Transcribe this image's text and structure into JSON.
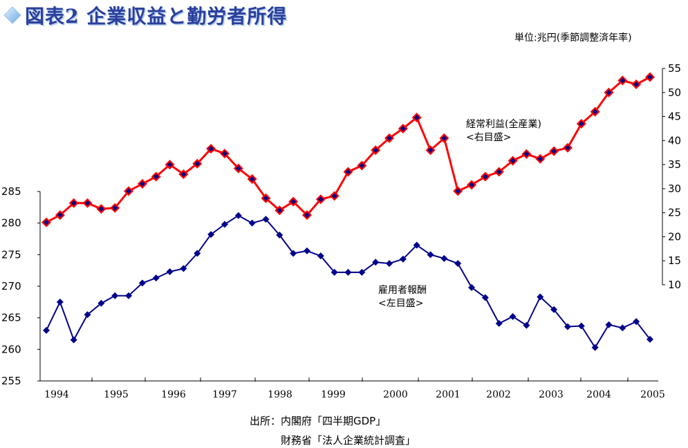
{
  "header": {
    "title": "図表2 企業収益と勤労者所得",
    "unit_note": "単位:兆円(季節調整済年率)"
  },
  "source": {
    "line1": "出所：内閣府「四半期GDP」",
    "line2": "財務省「法人企業統計調査」"
  },
  "colors": {
    "title": "#2c3f9c",
    "profit_line": "#ff0000",
    "profit_marker": "#00008b",
    "comp_line": "#00008b",
    "comp_marker": "#00008b"
  },
  "chart_data": {
    "type": "line",
    "x_tick_labels": [
      "1994",
      "1995",
      "1996",
      "1997",
      "1998",
      "1999",
      "2000",
      "2001",
      "2002",
      "2003",
      "2004",
      "2005"
    ],
    "left_axis": {
      "ylim": [
        255,
        285
      ],
      "ticks": [
        255,
        260,
        265,
        270,
        275,
        280,
        285
      ]
    },
    "right_axis": {
      "ylim": [
        10,
        55
      ],
      "ticks": [
        10,
        15,
        20,
        25,
        30,
        35,
        40,
        45,
        50,
        55
      ]
    },
    "series": [
      {
        "name": "経常利益(全産業)",
        "label_line1": "経常利益(全産業)",
        "label_line2": "<右目盛>",
        "axis": "right",
        "values": [
          23.0,
          24.5,
          27.0,
          27.0,
          25.8,
          26.0,
          29.5,
          31.0,
          32.5,
          35.0,
          33.0,
          35.2,
          38.3,
          37.3,
          34.2,
          32.0,
          28.0,
          25.5,
          27.3,
          24.5,
          27.8,
          28.5,
          33.5,
          34.8,
          38.0,
          40.5,
          42.5,
          44.8,
          38.0,
          40.5,
          29.5,
          30.8,
          32.5,
          33.5,
          35.8,
          37.2,
          36.2,
          37.8,
          38.5,
          43.5,
          46.0,
          50.0,
          52.5,
          51.7,
          53.2
        ]
      },
      {
        "name": "雇用者報酬",
        "label_line1": "雇用者報酬",
        "label_line2": "<左目盛>",
        "axis": "left",
        "values": [
          263.0,
          267.5,
          261.5,
          265.5,
          267.3,
          268.5,
          268.5,
          270.5,
          271.3,
          272.3,
          272.8,
          275.2,
          278.2,
          279.8,
          281.2,
          280.0,
          280.6,
          278.1,
          275.2,
          275.6,
          274.8,
          272.2,
          272.2,
          272.2,
          273.8,
          273.6,
          274.3,
          276.5,
          275.0,
          274.4,
          273.6,
          269.8,
          268.2,
          264.1,
          265.2,
          263.8,
          268.3,
          266.3,
          263.6,
          263.7,
          260.3,
          263.9,
          263.4,
          264.4,
          261.6
        ]
      }
    ]
  }
}
